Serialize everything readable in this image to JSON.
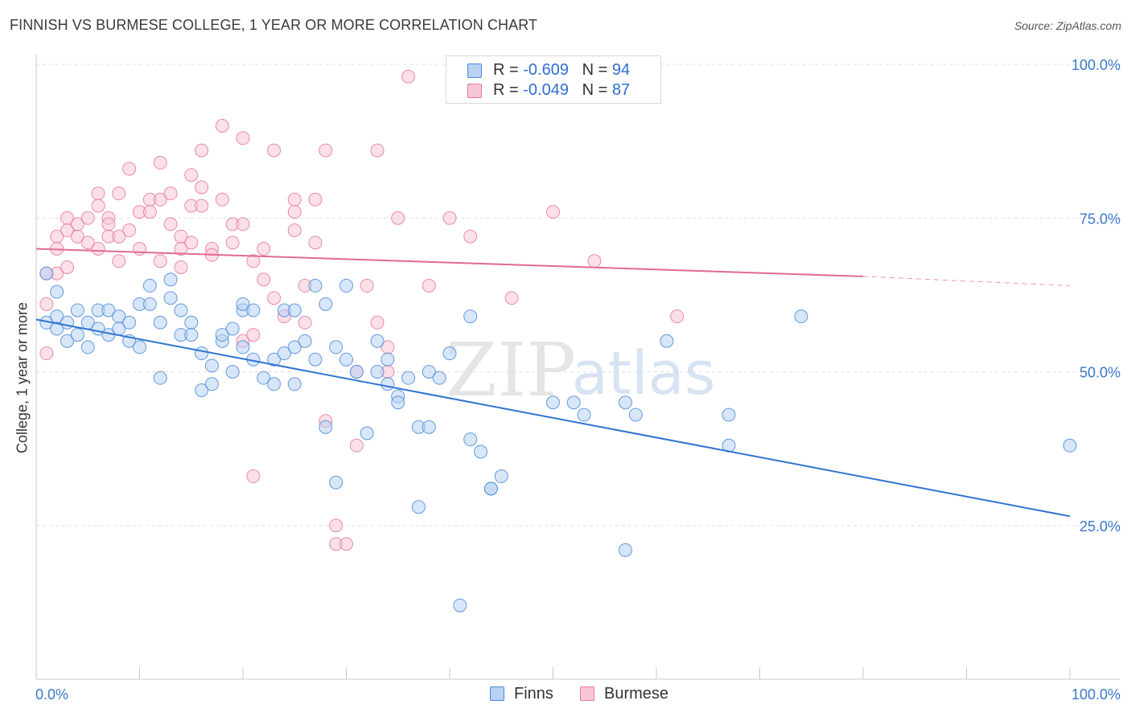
{
  "title": "FINNISH VS BURMESE COLLEGE, 1 YEAR OR MORE CORRELATION CHART",
  "source": "Source: ZipAtlas.com",
  "watermark": {
    "zip": "ZIP",
    "atlas": "atlas"
  },
  "legend": {
    "finns": {
      "r_label": "R = ",
      "r_value": "-0.609",
      "n_label": "N = ",
      "n_value": "94"
    },
    "burmese": {
      "r_label": "R = ",
      "r_value": "-0.049",
      "n_label": "N = ",
      "n_value": "87"
    }
  },
  "colors": {
    "finns": "#4a8ad8",
    "finns_fill": "#b8d2f4",
    "burmese": "#e8789f",
    "burmese_fill": "#f7c6d6",
    "axis_text": "#3a78c9"
  },
  "chart_data": {
    "type": "scatter",
    "title": "FINNISH VS BURMESE COLLEGE, 1 YEAR OR MORE CORRELATION CHART",
    "xlabel": "",
    "ylabel": "College, 1 year or more",
    "xlim": [
      0,
      100
    ],
    "ylim": [
      0,
      100
    ],
    "x_tick_labels": [
      "0.0%",
      "100.0%"
    ],
    "y_ticks": [
      25,
      50,
      75,
      100
    ],
    "y_tick_labels": [
      "25.0%",
      "50.0%",
      "75.0%",
      "100.0%"
    ],
    "grid": true,
    "series": [
      {
        "name": "Finns",
        "r": -0.609,
        "n": 94,
        "trend": {
          "x0": 0,
          "y0": 58.5,
          "x1": 100,
          "y1": 26.5,
          "dashed_from": null
        },
        "points": [
          [
            1,
            58
          ],
          [
            1,
            66
          ],
          [
            2,
            63
          ],
          [
            2,
            59
          ],
          [
            2,
            57
          ],
          [
            3,
            55
          ],
          [
            3,
            58
          ],
          [
            4,
            60
          ],
          [
            4,
            56
          ],
          [
            5,
            54
          ],
          [
            5,
            58
          ],
          [
            6,
            60
          ],
          [
            6,
            57
          ],
          [
            7,
            60
          ],
          [
            7,
            56
          ],
          [
            8,
            59
          ],
          [
            8,
            57
          ],
          [
            9,
            55
          ],
          [
            9,
            58
          ],
          [
            10,
            54
          ],
          [
            10,
            61
          ],
          [
            11,
            64
          ],
          [
            11,
            61
          ],
          [
            12,
            58
          ],
          [
            12,
            49
          ],
          [
            13,
            62
          ],
          [
            13,
            65
          ],
          [
            14,
            60
          ],
          [
            14,
            56
          ],
          [
            15,
            58
          ],
          [
            15,
            56
          ],
          [
            16,
            47
          ],
          [
            16,
            53
          ],
          [
            17,
            48
          ],
          [
            17,
            51
          ],
          [
            18,
            55
          ],
          [
            18,
            56
          ],
          [
            19,
            57
          ],
          [
            19,
            50
          ],
          [
            20,
            60
          ],
          [
            20,
            61
          ],
          [
            20,
            54
          ],
          [
            21,
            52
          ],
          [
            21,
            60
          ],
          [
            22,
            49
          ],
          [
            23,
            48
          ],
          [
            23,
            52
          ],
          [
            24,
            60
          ],
          [
            24,
            53
          ],
          [
            25,
            48
          ],
          [
            25,
            54
          ],
          [
            25,
            60
          ],
          [
            26,
            55
          ],
          [
            27,
            52
          ],
          [
            27,
            64
          ],
          [
            28,
            41
          ],
          [
            28,
            61
          ],
          [
            29,
            32
          ],
          [
            29,
            54
          ],
          [
            30,
            64
          ],
          [
            30,
            52
          ],
          [
            31,
            50
          ],
          [
            32,
            40
          ],
          [
            33,
            50
          ],
          [
            33,
            55
          ],
          [
            34,
            48
          ],
          [
            34,
            52
          ],
          [
            35,
            46
          ],
          [
            35,
            45
          ],
          [
            36,
            49
          ],
          [
            37,
            28
          ],
          [
            37,
            41
          ],
          [
            38,
            41
          ],
          [
            38,
            50
          ],
          [
            39,
            49
          ],
          [
            40,
            53
          ],
          [
            41,
            12
          ],
          [
            42,
            59
          ],
          [
            42,
            39
          ],
          [
            43,
            37
          ],
          [
            44,
            31
          ],
          [
            44,
            31
          ],
          [
            45,
            33
          ],
          [
            50,
            45
          ],
          [
            52,
            45
          ],
          [
            53,
            43
          ],
          [
            57,
            45
          ],
          [
            57,
            21
          ],
          [
            58,
            43
          ],
          [
            61,
            55
          ],
          [
            67,
            38
          ],
          [
            67,
            43
          ],
          [
            74,
            59
          ],
          [
            100,
            38
          ]
        ]
      },
      {
        "name": "Burmese",
        "r": -0.049,
        "n": 87,
        "trend": {
          "x0": 0,
          "y0": 70,
          "x1": 80,
          "y1": 65.5,
          "dashed_from": 80,
          "x2": 100,
          "y2": 64
        },
        "points": [
          [
            1,
            53
          ],
          [
            1,
            66
          ],
          [
            1,
            61
          ],
          [
            2,
            66
          ],
          [
            2,
            72
          ],
          [
            2,
            70
          ],
          [
            3,
            75
          ],
          [
            3,
            73
          ],
          [
            3,
            67
          ],
          [
            4,
            72
          ],
          [
            4,
            74
          ],
          [
            5,
            71
          ],
          [
            5,
            75
          ],
          [
            6,
            79
          ],
          [
            6,
            77
          ],
          [
            6,
            70
          ],
          [
            7,
            75
          ],
          [
            7,
            74
          ],
          [
            7,
            72
          ],
          [
            8,
            68
          ],
          [
            8,
            79
          ],
          [
            8,
            72
          ],
          [
            9,
            83
          ],
          [
            9,
            73
          ],
          [
            10,
            76
          ],
          [
            10,
            70
          ],
          [
            11,
            78
          ],
          [
            11,
            76
          ],
          [
            12,
            84
          ],
          [
            12,
            78
          ],
          [
            12,
            68
          ],
          [
            13,
            74
          ],
          [
            13,
            79
          ],
          [
            14,
            72
          ],
          [
            14,
            67
          ],
          [
            14,
            70
          ],
          [
            15,
            82
          ],
          [
            15,
            77
          ],
          [
            15,
            71
          ],
          [
            16,
            86
          ],
          [
            16,
            80
          ],
          [
            16,
            77
          ],
          [
            17,
            70
          ],
          [
            17,
            69
          ],
          [
            18,
            78
          ],
          [
            18,
            90
          ],
          [
            19,
            74
          ],
          [
            19,
            71
          ],
          [
            20,
            88
          ],
          [
            20,
            74
          ],
          [
            20,
            55
          ],
          [
            21,
            68
          ],
          [
            21,
            56
          ],
          [
            21,
            33
          ],
          [
            22,
            65
          ],
          [
            22,
            70
          ],
          [
            23,
            62
          ],
          [
            23,
            86
          ],
          [
            24,
            59
          ],
          [
            25,
            73
          ],
          [
            25,
            78
          ],
          [
            25,
            76
          ],
          [
            26,
            64
          ],
          [
            26,
            58
          ],
          [
            27,
            78
          ],
          [
            27,
            71
          ],
          [
            28,
            42
          ],
          [
            28,
            86
          ],
          [
            29,
            22
          ],
          [
            29,
            25
          ],
          [
            30,
            22
          ],
          [
            31,
            38
          ],
          [
            31,
            50
          ],
          [
            32,
            64
          ],
          [
            33,
            86
          ],
          [
            33,
            58
          ],
          [
            34,
            50
          ],
          [
            34,
            54
          ],
          [
            35,
            75
          ],
          [
            36,
            98
          ],
          [
            38,
            64
          ],
          [
            40,
            75
          ],
          [
            42,
            72
          ],
          [
            46,
            62
          ],
          [
            50,
            76
          ],
          [
            54,
            68
          ],
          [
            62,
            59
          ]
        ]
      }
    ]
  }
}
